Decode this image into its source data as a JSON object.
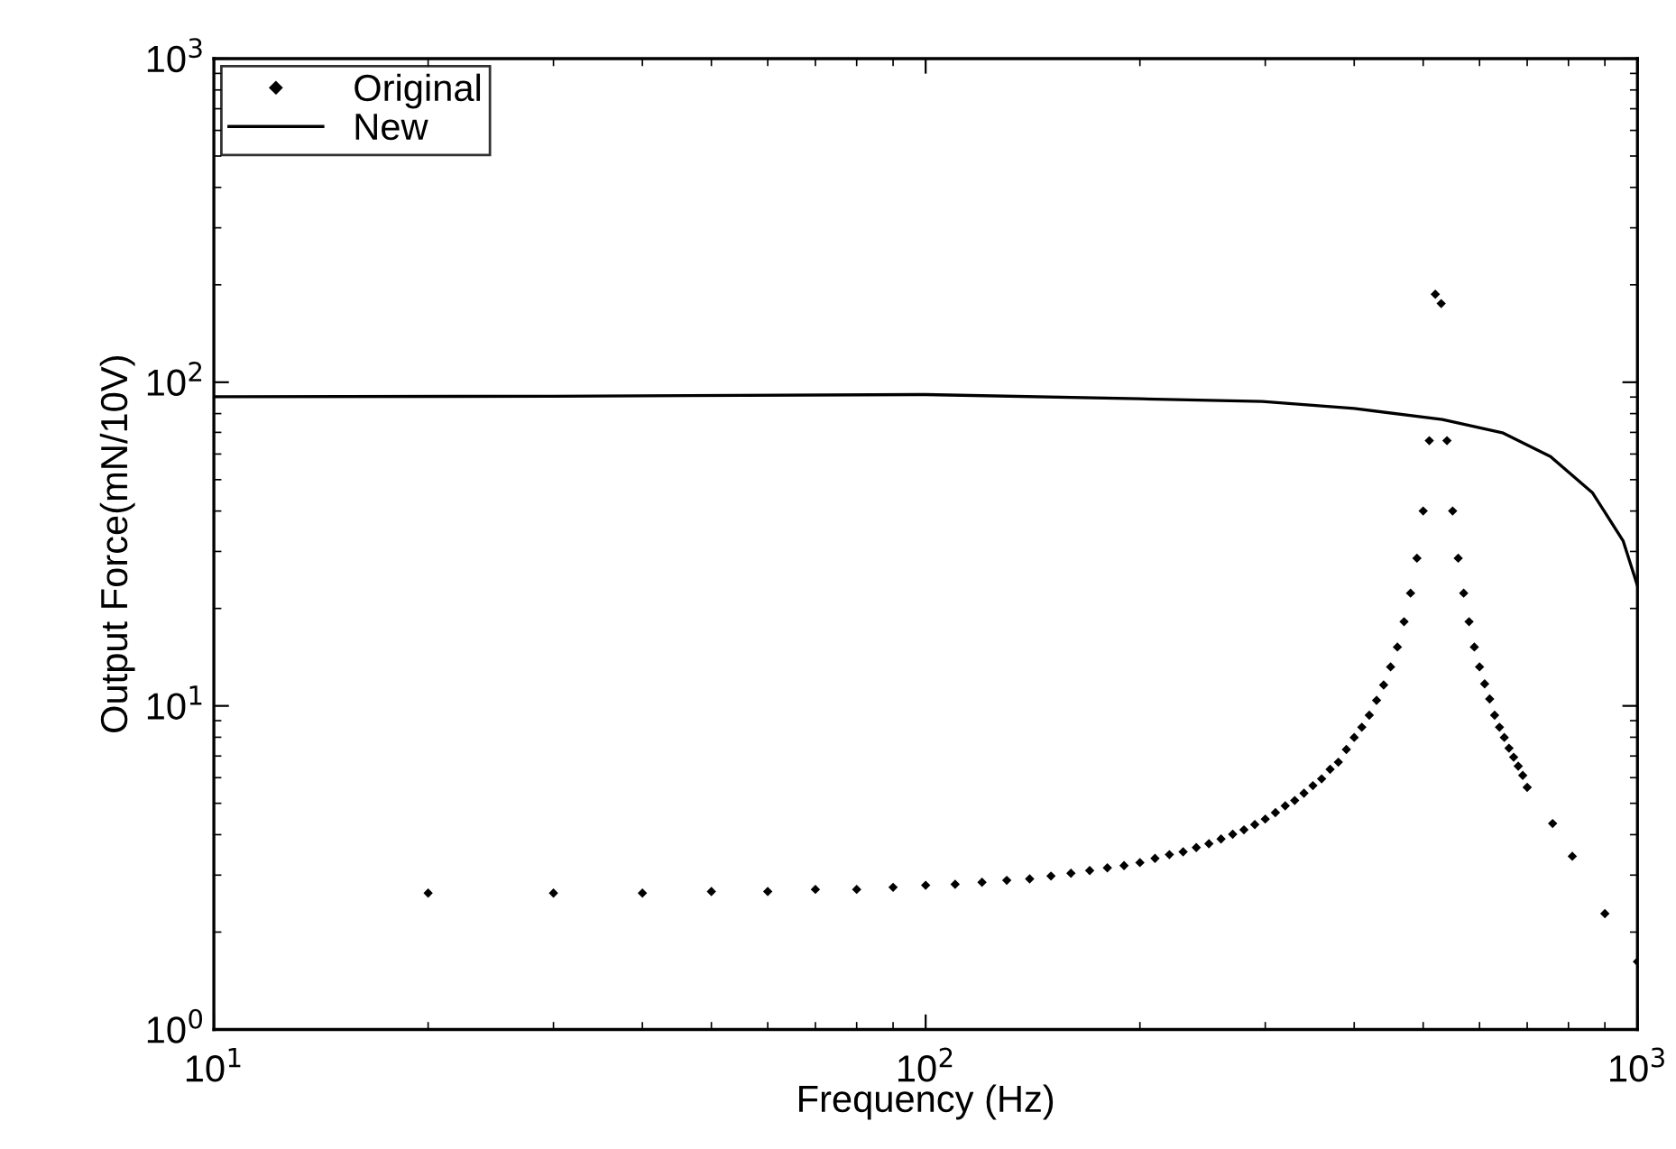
{
  "chart_data": {
    "type": "scatter",
    "xlabel": "Frequency (Hz)",
    "ylabel": "Output Force(mN/10V)",
    "log": "xy",
    "grid": false,
    "legend": "top left",
    "xlim": [
      10,
      1000
    ],
    "ylim": [
      1,
      1000
    ],
    "xticks": [
      {
        "value": 10,
        "label": "10$^{1}$"
      },
      {
        "value": 100,
        "label": "10$^{2}$"
      },
      {
        "value": 1000,
        "label": "10$^{3}$"
      }
    ],
    "yticks": [
      {
        "value": 1,
        "label": "10$^{0}$"
      },
      {
        "value": 10,
        "label": "10$^{1}$"
      },
      {
        "value": 100,
        "label": "10$^{2}$"
      },
      {
        "value": 1000,
        "label": "10$^{3}$"
      }
    ],
    "series": [
      {
        "name": "Original",
        "marker": "diamond",
        "color": "#000000",
        "x": [
          20,
          30,
          40,
          50,
          60,
          70,
          80,
          90,
          100,
          110,
          120,
          130,
          140,
          150,
          160,
          170,
          180,
          190,
          200,
          210,
          220,
          230,
          240,
          250,
          260,
          270,
          280,
          290,
          300,
          310,
          320,
          330,
          340,
          350,
          360,
          370,
          380,
          390,
          400,
          410,
          420,
          430,
          440,
          450,
          460,
          470,
          480,
          490,
          500,
          510,
          520,
          530,
          540,
          550,
          560,
          570,
          580,
          590,
          600,
          610,
          620,
          630,
          640,
          650,
          660,
          670,
          680,
          690,
          700,
          760,
          810,
          900,
          1000
        ],
        "values": [
          2.64,
          2.64,
          2.64,
          2.67,
          2.67,
          2.71,
          2.71,
          2.75,
          2.79,
          2.81,
          2.85,
          2.89,
          2.92,
          2.98,
          3.04,
          3.1,
          3.16,
          3.21,
          3.28,
          3.38,
          3.47,
          3.54,
          3.65,
          3.75,
          3.88,
          4.01,
          4.14,
          4.3,
          4.47,
          4.68,
          4.91,
          5.1,
          5.37,
          5.67,
          5.95,
          6.37,
          6.7,
          7.33,
          7.99,
          8.59,
          9.36,
          10.4,
          11.6,
          13.2,
          15.2,
          18.2,
          22.3,
          28.6,
          40,
          66,
          187,
          175,
          66,
          40,
          28.6,
          22.3,
          18.2,
          15.2,
          13.2,
          11.7,
          10.5,
          9.36,
          8.59,
          7.99,
          7.4,
          6.94,
          6.51,
          6.1,
          5.6,
          4.33,
          3.43,
          2.28,
          1.62
        ]
      },
      {
        "name": "New",
        "type": "line",
        "line_style": "solid",
        "color": "#000000",
        "x": [
          10,
          30,
          100,
          200,
          297,
          400,
          532,
          646,
          755,
          865,
          955,
          1000
        ],
        "values": [
          90.2,
          90.5,
          91.6,
          88.9,
          87.2,
          83,
          76.7,
          69.8,
          58.9,
          45.5,
          32.3,
          23.5
        ]
      }
    ]
  }
}
